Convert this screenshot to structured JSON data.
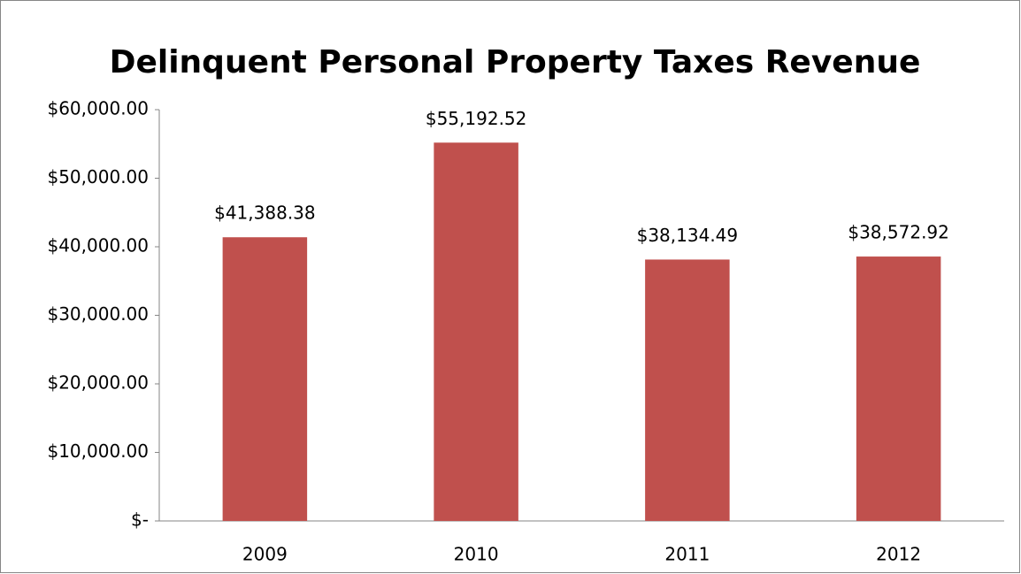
{
  "chart_data": {
    "type": "bar",
    "title": "Delinquent Personal Property Taxes Revenue",
    "categories": [
      "2009",
      "2010",
      "2011",
      "2012"
    ],
    "values": [
      41388.38,
      55192.52,
      38134.49,
      38572.92
    ],
    "value_labels": [
      "$41,388.38",
      "$55,192.52",
      "$38,134.49",
      "$38,572.92"
    ],
    "color": "#c0504d",
    "ylim": [
      0,
      60000
    ],
    "yticks": [
      {
        "value": 0,
        "label": "$-"
      },
      {
        "value": 10000,
        "label": "$10,000.00"
      },
      {
        "value": 20000,
        "label": "$20,000.00"
      },
      {
        "value": 30000,
        "label": "$30,000.00"
      },
      {
        "value": 40000,
        "label": "$40,000.00"
      },
      {
        "value": 50000,
        "label": "$50,000.00"
      },
      {
        "value": 60000,
        "label": "$60,000.00"
      }
    ],
    "grid": false
  }
}
